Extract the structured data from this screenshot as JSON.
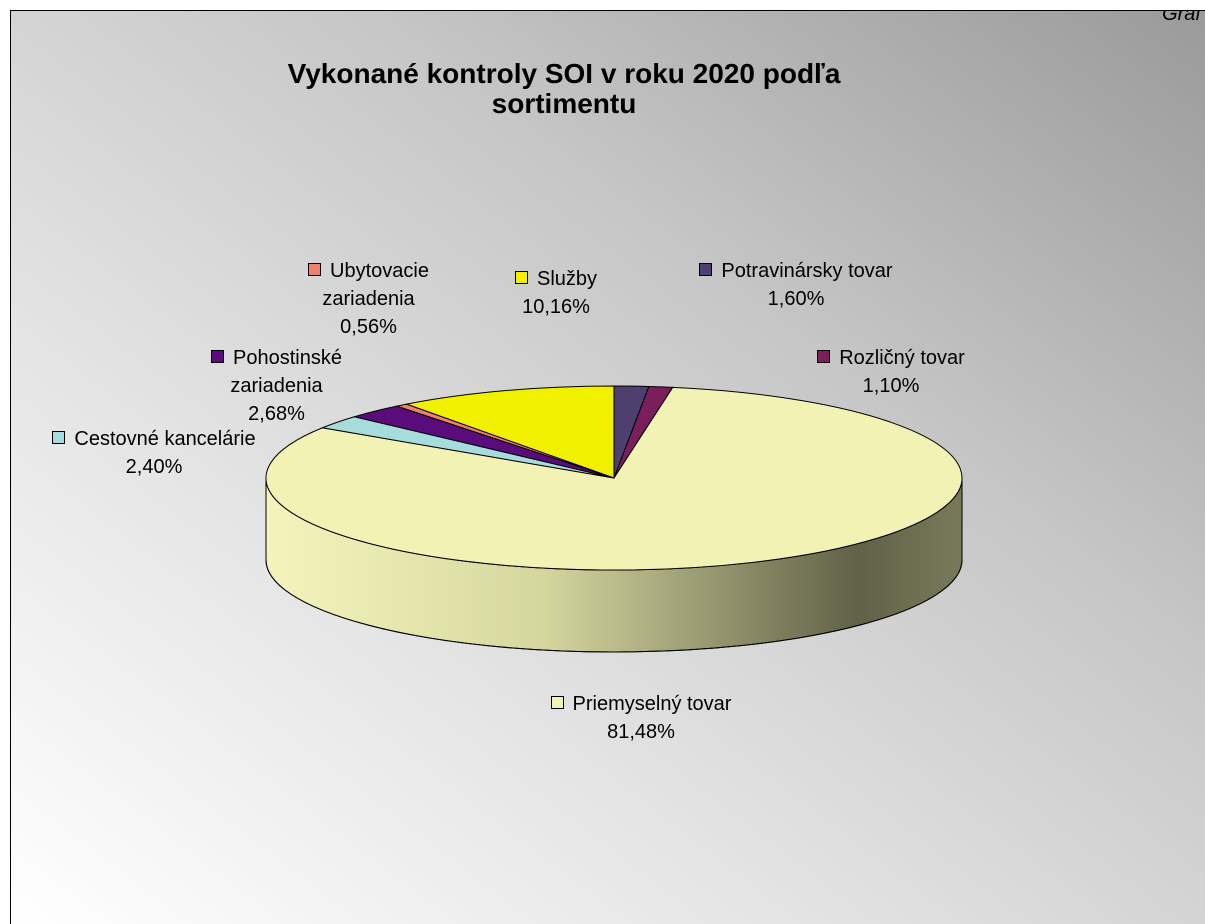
{
  "corner_label": "Graf",
  "chart_data": {
    "type": "pie3d",
    "title": "Vykonané kontroly SOI v roku 2020 podľa sortimentu",
    "categories": [
      "Potravinársky tovar",
      "Rozličný tovar",
      "Priemyselný tovar",
      "Cestovné kancelárie",
      "Pohostinské zariadenia",
      "Ubytovacie zariadenia",
      "Služby"
    ],
    "values": [
      1.6,
      1.1,
      81.48,
      2.4,
      2.68,
      0.56,
      10.16
    ],
    "value_labels": [
      "1,60%",
      "1,10%",
      "81,48%",
      "2,40%",
      "2,68%",
      "0,56%",
      "10,16%"
    ],
    "colors": [
      "#4f3f6f",
      "#7b1f5c",
      "#f2f2b4",
      "#a6dcdc",
      "#5a0c7a",
      "#f0806e",
      "#f0f000"
    ]
  }
}
